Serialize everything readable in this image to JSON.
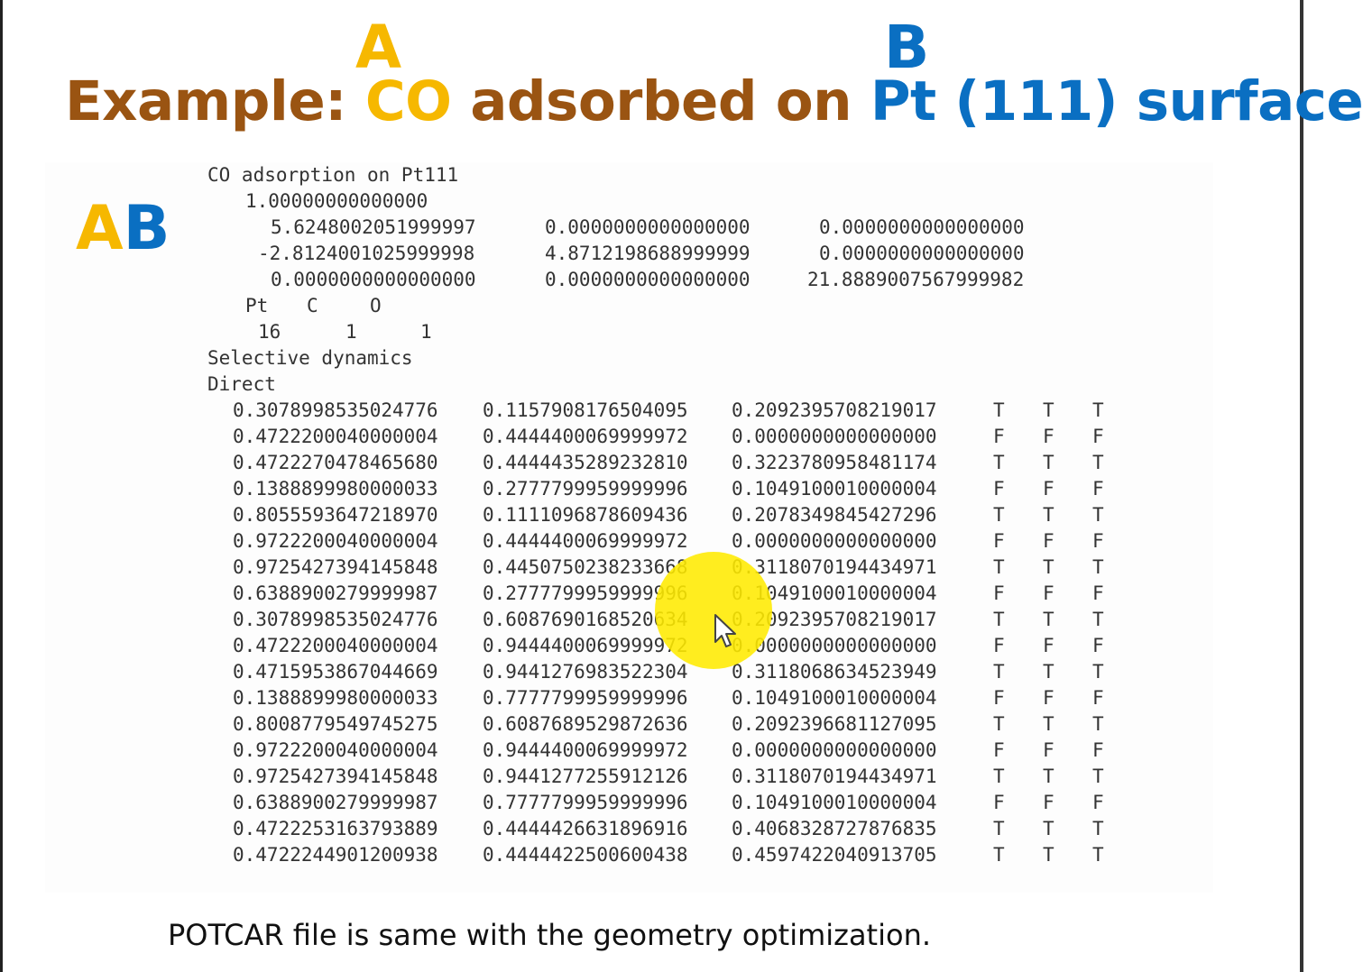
{
  "slide": {
    "letter_a": "A",
    "letter_b": "B",
    "title_prefix": "Example: ",
    "title_co": "CO",
    "title_middle": " adsorbed on ",
    "title_pt": "Pt (111) surface",
    "ab_a": "A",
    "ab_b": "B",
    "footer": "POTCAR file is same with the geometry optimization.",
    "colors": {
      "brown": "#9a5412",
      "yellow": "#f6b800",
      "blue": "#0a6fc2",
      "highlight": "#ffeb00"
    }
  },
  "poscar": {
    "comment": "CO adsorption on Pt111",
    "scale": "1.00000000000000",
    "lattice": [
      [
        "5.6248002051999997",
        "0.0000000000000000",
        "0.0000000000000000"
      ],
      [
        "-2.8124001025999998",
        "4.8712198688999999",
        "0.0000000000000000"
      ],
      [
        "0.0000000000000000",
        "0.0000000000000000",
        "21.8889007567999982"
      ]
    ],
    "species": [
      "Pt",
      "C",
      "O"
    ],
    "counts": [
      "16",
      "1",
      "1"
    ],
    "mode": "Selective dynamics",
    "coord_type": "Direct",
    "atoms": [
      [
        "0.3078998535024776",
        "0.1157908176504095",
        "0.2092395708219017",
        "T",
        "T",
        "T"
      ],
      [
        "0.4722200040000004",
        "0.4444400069999972",
        "0.0000000000000000",
        "F",
        "F",
        "F"
      ],
      [
        "0.4722270478465680",
        "0.4444435289232810",
        "0.3223780958481174",
        "T",
        "T",
        "T"
      ],
      [
        "0.1388899980000033",
        "0.2777799959999996",
        "0.1049100010000004",
        "F",
        "F",
        "F"
      ],
      [
        "0.8055593647218970",
        "0.1111096878609436",
        "0.2078349845427296",
        "T",
        "T",
        "T"
      ],
      [
        "0.9722200040000004",
        "0.4444400069999972",
        "0.0000000000000000",
        "F",
        "F",
        "F"
      ],
      [
        "0.9725427394145848",
        "0.4450750238233668",
        "0.3118070194434971",
        "T",
        "T",
        "T"
      ],
      [
        "0.6388900279999987",
        "0.2777799959999996",
        "0.1049100010000004",
        "F",
        "F",
        "F"
      ],
      [
        "0.3078998535024776",
        "0.6087690168520634",
        "0.2092395708219017",
        "T",
        "T",
        "T"
      ],
      [
        "0.4722200040000004",
        "0.9444400069999972",
        "0.0000000000000000",
        "F",
        "F",
        "F"
      ],
      [
        "0.4715953867044669",
        "0.9441276983522304",
        "0.3118068634523949",
        "T",
        "T",
        "T"
      ],
      [
        "0.1388899980000033",
        "0.7777799959999996",
        "0.1049100010000004",
        "F",
        "F",
        "F"
      ],
      [
        "0.8008779549745275",
        "0.6087689529872636",
        "0.2092396681127095",
        "T",
        "T",
        "T"
      ],
      [
        "0.9722200040000004",
        "0.9444400069999972",
        "0.0000000000000000",
        "F",
        "F",
        "F"
      ],
      [
        "0.9725427394145848",
        "0.9441277255912126",
        "0.3118070194434971",
        "T",
        "T",
        "T"
      ],
      [
        "0.6388900279999987",
        "0.7777799959999996",
        "0.1049100010000004",
        "F",
        "F",
        "F"
      ],
      [
        "0.4722253163793889",
        "0.4444426631896916",
        "0.4068328727876835",
        "T",
        "T",
        "T"
      ],
      [
        "0.4722244901200938",
        "0.4444422500600438",
        "0.4597422040913705",
        "T",
        "T",
        "T"
      ]
    ]
  }
}
